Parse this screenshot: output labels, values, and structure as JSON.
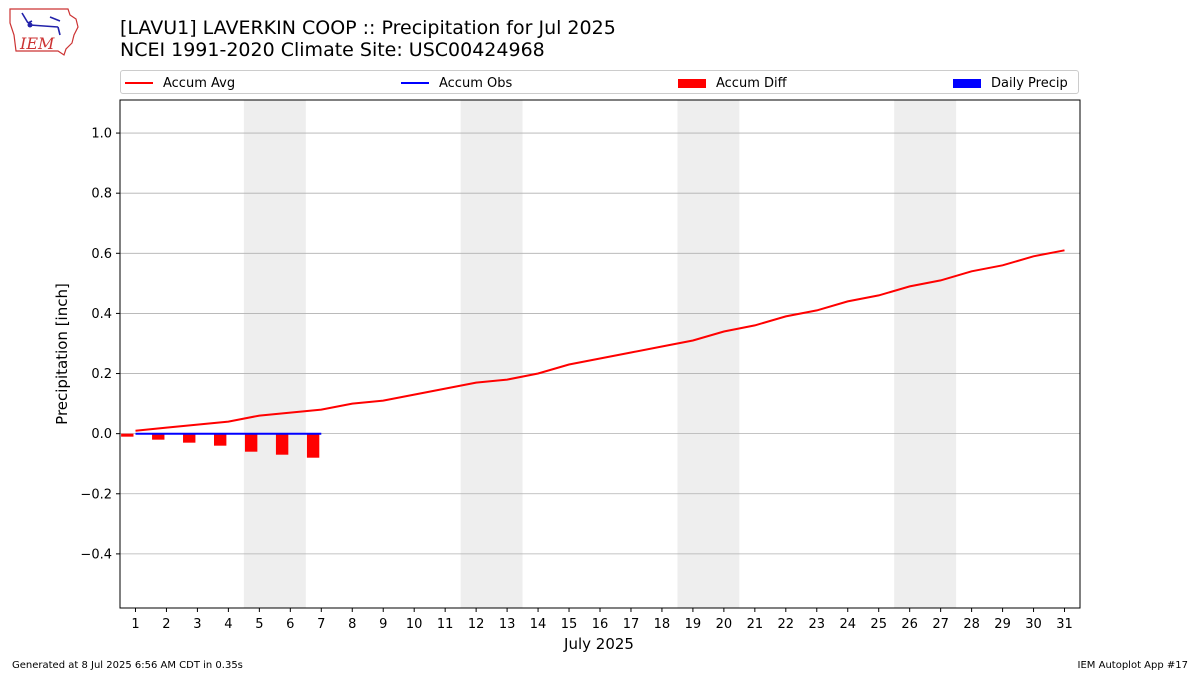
{
  "header": {
    "title_line1": "[LAVU1] LAVERKIN COOP :: Precipitation for Jul 2025",
    "title_line2": "NCEI 1991-2020 Climate Site: USC00424968"
  },
  "logo": {
    "text": "IEM",
    "icon": "iem-iowa-logo"
  },
  "footer": {
    "left": "Generated at 8 Jul 2025 6:56 AM CDT in 0.35s",
    "right": "IEM Autoplot App #17"
  },
  "colors": {
    "avg": "#ff0000",
    "obs": "#0000ff",
    "diff": "#ff0000",
    "daily": "#0000ff",
    "weekend_band": "#eeeeee",
    "grid": "#b0b0b0"
  },
  "legend": [
    {
      "label": "Accum Avg",
      "kind": "line",
      "color": "#ff0000"
    },
    {
      "label": "Accum Obs",
      "kind": "line",
      "color": "#0000ff"
    },
    {
      "label": "Accum Diff",
      "kind": "box",
      "color": "#ff0000"
    },
    {
      "label": "Daily Precip",
      "kind": "box",
      "color": "#0000ff"
    }
  ],
  "chart_data": {
    "type": "line",
    "xlabel": "July 2025",
    "ylabel": "Precipitation [inch]",
    "x": [
      1,
      2,
      3,
      4,
      5,
      6,
      7,
      8,
      9,
      10,
      11,
      12,
      13,
      14,
      15,
      16,
      17,
      18,
      19,
      20,
      21,
      22,
      23,
      24,
      25,
      26,
      27,
      28,
      29,
      30,
      31
    ],
    "xlim": [
      0.5,
      31.5
    ],
    "ylim": [
      -0.58,
      1.11
    ],
    "yticks": [
      -0.4,
      -0.2,
      0.0,
      0.2,
      0.4,
      0.6,
      0.8,
      1.0
    ],
    "ytick_labels": [
      "−0.4",
      "−0.2",
      "0.0",
      "0.2",
      "0.4",
      "0.6",
      "0.8",
      "1.0"
    ],
    "grid": true,
    "legend_position": "top",
    "weekend_bands": [
      [
        4.5,
        6.5
      ],
      [
        11.5,
        13.5
      ],
      [
        18.5,
        20.5
      ],
      [
        25.5,
        27.5
      ]
    ],
    "series": [
      {
        "name": "Accum Avg",
        "kind": "line",
        "x": [
          1,
          2,
          3,
          4,
          5,
          6,
          7,
          8,
          9,
          10,
          11,
          12,
          13,
          14,
          15,
          16,
          17,
          18,
          19,
          20,
          21,
          22,
          23,
          24,
          25,
          26,
          27,
          28,
          29,
          30,
          31
        ],
        "values": [
          0.01,
          0.02,
          0.03,
          0.04,
          0.06,
          0.07,
          0.08,
          0.1,
          0.11,
          0.13,
          0.15,
          0.17,
          0.18,
          0.2,
          0.23,
          0.25,
          0.27,
          0.29,
          0.31,
          0.34,
          0.36,
          0.39,
          0.41,
          0.44,
          0.46,
          0.49,
          0.51,
          0.54,
          0.56,
          0.59,
          0.61
        ]
      },
      {
        "name": "Accum Obs",
        "kind": "line",
        "x": [
          1,
          2,
          3,
          4,
          5,
          6,
          7
        ],
        "values": [
          0,
          0,
          0,
          0,
          0,
          0,
          0
        ]
      },
      {
        "name": "Accum Diff",
        "kind": "bar",
        "x": [
          1,
          2,
          3,
          4,
          5,
          6,
          7
        ],
        "values": [
          -0.01,
          -0.02,
          -0.03,
          -0.04,
          -0.06,
          -0.07,
          -0.08
        ]
      },
      {
        "name": "Daily Precip",
        "kind": "bar",
        "x": [
          1,
          2,
          3,
          4,
          5,
          6,
          7
        ],
        "values": [
          0,
          0,
          0,
          0,
          0,
          0,
          0
        ]
      }
    ]
  }
}
